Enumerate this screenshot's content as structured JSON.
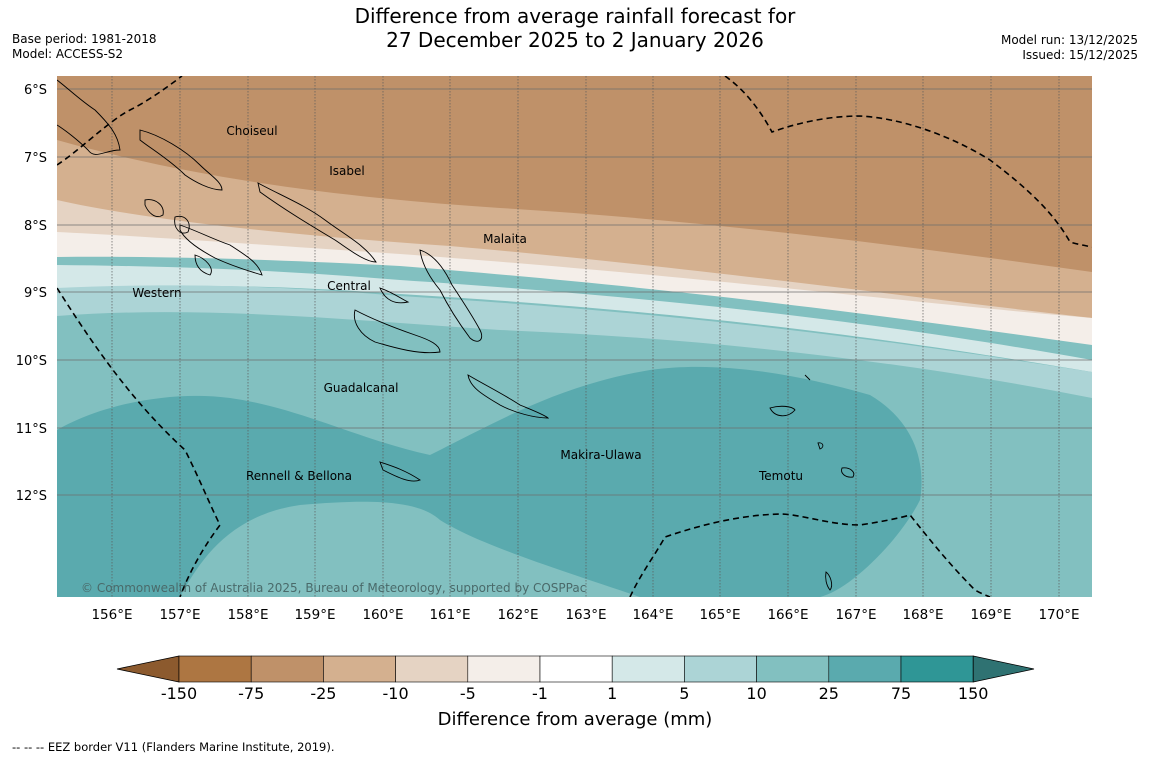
{
  "header": {
    "title_line1": "Difference from average rainfall forecast for",
    "title_line2": "27 December 2025 to 2 January 2026",
    "base_period": "Base period: 1981-2018",
    "model": "Model: ACCESS-S2",
    "model_run": "Model run: 13/12/2025",
    "issued": "Issued: 15/12/2025"
  },
  "map": {
    "lat_labels": [
      "6°S",
      "7°S",
      "8°S",
      "9°S",
      "10°S",
      "11°S",
      "12°S"
    ],
    "lon_labels": [
      "156°E",
      "157°E",
      "158°E",
      "159°E",
      "160°E",
      "161°E",
      "162°E",
      "163°E",
      "164°E",
      "165°E",
      "166°E",
      "167°E",
      "168°E",
      "169°E",
      "170°E"
    ],
    "place_labels": {
      "choiseul": "Choiseul",
      "isabel": "Isabel",
      "malaita": "Malaita",
      "central": "Central",
      "western": "Western",
      "guadalcanal": "Guadalcanal",
      "rennell": "Rennell & Bellona",
      "makira": "Makira-Ulawa",
      "temotu": "Temotu"
    },
    "copyright": "© Commonwealth of Australia 2025, Bureau of Meteorology, supported by COSPPac"
  },
  "legend": {
    "title": "Difference from average (mm)",
    "ticks": [
      "-150",
      "-75",
      "-25",
      "-10",
      "-5",
      "-1",
      "1",
      "5",
      "10",
      "25",
      "75",
      "150"
    ],
    "colors": [
      "#8c5a2e",
      "#ad7642",
      "#bf9169",
      "#d4b08f",
      "#e5d3c3",
      "#f4eee9",
      "#ffffff",
      "#d4e8e8",
      "#acd4d6",
      "#82c0c0",
      "#5aaaae",
      "#2f9696",
      "#2f7272"
    ]
  },
  "footer": "--  --  -- EEZ border V11 (Flanders Marine Institute, 2019)."
}
